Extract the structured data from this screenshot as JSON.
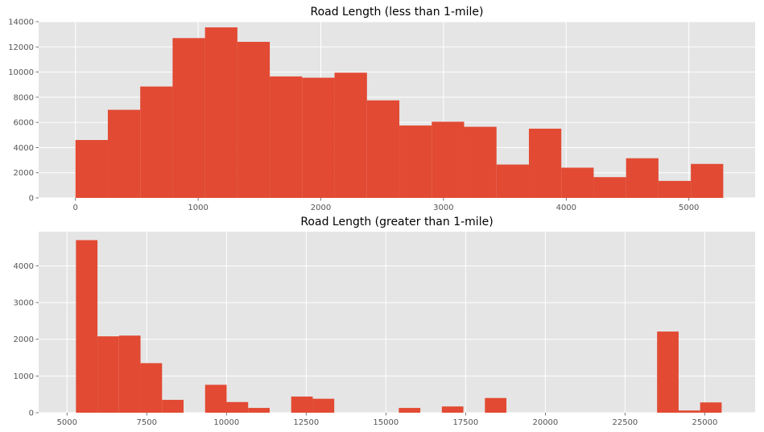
{
  "chart_data": [
    {
      "type": "bar",
      "subtype": "histogram",
      "title": "Road Length (less than 1-mile)",
      "xlabel": "",
      "ylabel": "",
      "xlim": [
        -300,
        5540
      ],
      "ylim": [
        0,
        14000
      ],
      "xticks": [
        0,
        1000,
        2000,
        3000,
        4000,
        5000
      ],
      "yticks": [
        0,
        2000,
        4000,
        6000,
        8000,
        10000,
        12000,
        14000
      ],
      "grid": true,
      "bin_edges": [
        0,
        264,
        528,
        792,
        1056,
        1320,
        1584,
        1848,
        2112,
        2376,
        2640,
        2904,
        3168,
        3432,
        3696,
        3960,
        4224,
        4488,
        4752,
        5016,
        5280
      ],
      "values": [
        4600,
        7000,
        8850,
        12700,
        13550,
        12400,
        9650,
        9550,
        9950,
        7750,
        5750,
        6050,
        5650,
        2650,
        5500,
        2400,
        1650,
        3150,
        1350,
        2700
      ],
      "color": "#e24a33"
    },
    {
      "type": "bar",
      "subtype": "histogram",
      "title": "Road Length (greater than 1-mile)",
      "xlabel": "",
      "ylabel": "",
      "xlim": [
        4110,
        26580
      ],
      "ylim": [
        0,
        4930
      ],
      "xticks": [
        5000,
        7500,
        10000,
        12500,
        15000,
        17500,
        20000,
        22500,
        25000
      ],
      "yticks": [
        0,
        1000,
        2000,
        3000,
        4000
      ],
      "grid": true,
      "bin_edges": [
        5280,
        5955,
        6630,
        7305,
        7980,
        8655,
        9330,
        10005,
        10680,
        11355,
        12030,
        12705,
        13380,
        14055,
        14730,
        15405,
        16080,
        16755,
        17430,
        18105,
        18780,
        19455,
        20130,
        20805,
        21480,
        22155,
        22830,
        23505,
        24180,
        24855,
        25530
      ],
      "values": [
        4700,
        2080,
        2100,
        1350,
        350,
        0,
        760,
        290,
        130,
        0,
        440,
        380,
        0,
        0,
        0,
        130,
        0,
        170,
        0,
        400,
        0,
        0,
        0,
        0,
        0,
        0,
        0,
        2210,
        60,
        280
      ],
      "color": "#e24a33"
    }
  ]
}
